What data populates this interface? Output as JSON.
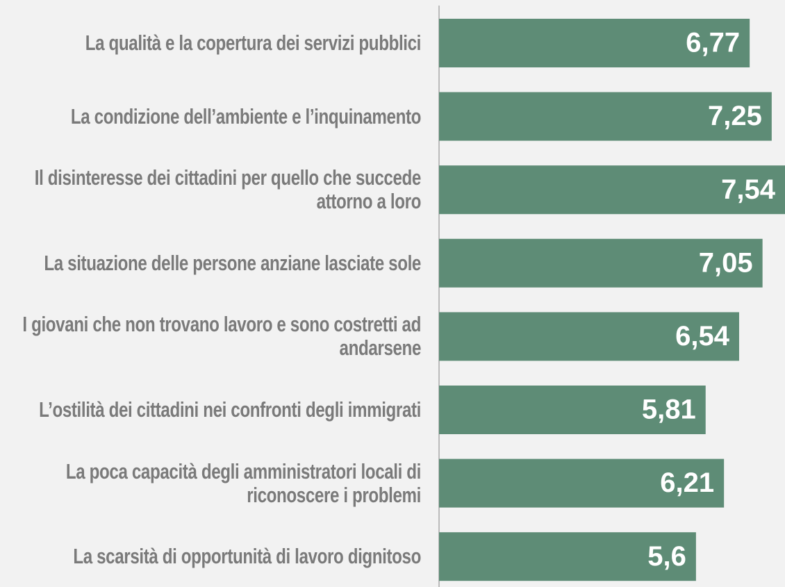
{
  "chart_data": {
    "type": "bar",
    "orientation": "horizontal",
    "categories": [
      "La qualità e la copertura dei servizi pubblici",
      "La condizione dell’ambiente e l’inquinamento",
      "Il disinteresse dei cittadini per quello che succede attorno a loro",
      "La situazione delle persone anziane lasciate sole",
      "I giovani che non trovano lavoro e sono costretti ad andarsene",
      "L’ostilità dei cittadini nei confronti degli immigrati",
      "La poca capacità degli amministratori locali di riconoscere i problemi",
      "La scarsità di opportunità di lavoro dignitoso"
    ],
    "values": [
      6.77,
      7.25,
      7.54,
      7.05,
      6.54,
      5.81,
      6.21,
      5.6
    ],
    "value_labels": [
      "6,77",
      "7,25",
      "7,54",
      "7,05",
      "6,54",
      "5,81",
      "6,21",
      "5,6"
    ],
    "color": "#5e8c76",
    "xlim": [
      0,
      7.54
    ]
  }
}
